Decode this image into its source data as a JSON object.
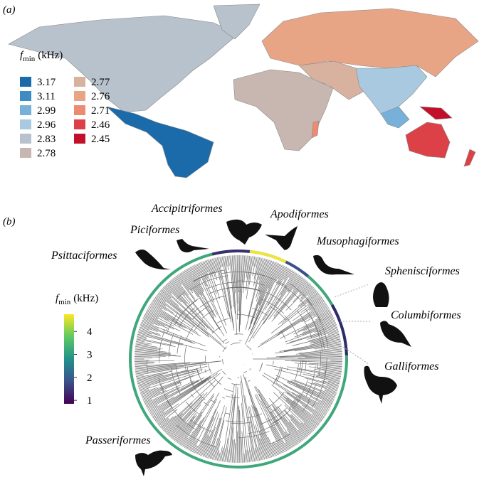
{
  "panel_a": {
    "label": "(a)",
    "legend": {
      "title": {
        "symbol": "f",
        "subscript": "min",
        "unit": "(kHz)"
      },
      "items": [
        {
          "label": "3.17",
          "color": "#1b6aa9"
        },
        {
          "label": "3.11",
          "color": "#3f8cc5"
        },
        {
          "label": "2.99",
          "color": "#77b1da"
        },
        {
          "label": "2.96",
          "color": "#a8c9e0"
        },
        {
          "label": "2.83",
          "color": "#b8c2cd"
        },
        {
          "label": "2.78",
          "color": "#c8b7b0"
        },
        {
          "label": "2.77",
          "color": "#d8b29f"
        },
        {
          "label": "2.76",
          "color": "#e8a586"
        },
        {
          "label": "2.71",
          "color": "#ec8a72"
        },
        {
          "label": "2.46",
          "color": "#dc4148"
        },
        {
          "label": "2.45",
          "color": "#c3102a"
        }
      ]
    }
  },
  "panel_b": {
    "label": "(b)",
    "colorbar": {
      "title": {
        "symbol": "f",
        "subscript": "min",
        "unit": "(kHz)"
      },
      "lim": [
        0.85,
        4.75
      ],
      "ticks": [
        1,
        2,
        3,
        4
      ]
    },
    "orders": [
      "Psittaciformes",
      "Piciformes",
      "Accipitriformes",
      "Apodiformes",
      "Musophagiformes",
      "Sphenisciformes",
      "Columbiformes",
      "Galliformes",
      "Passeriformes"
    ]
  }
}
